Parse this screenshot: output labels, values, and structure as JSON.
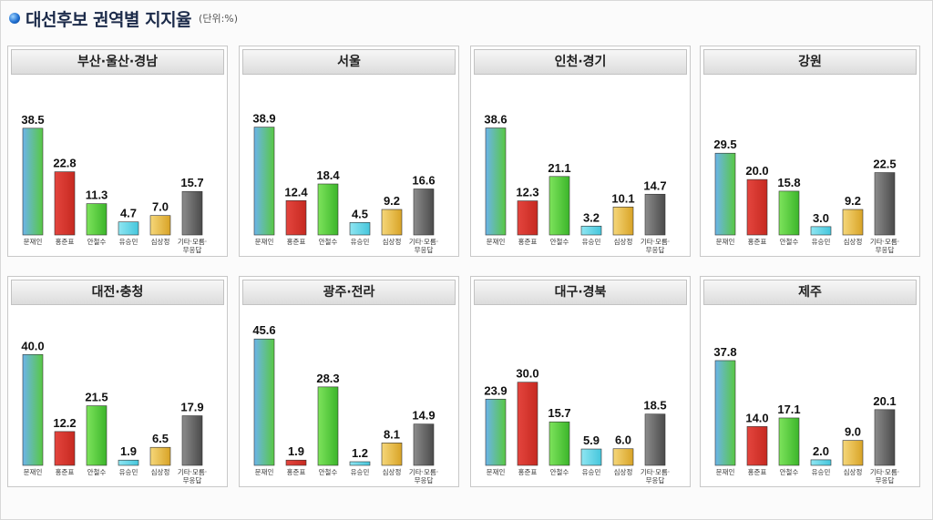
{
  "header": {
    "title": "대선후보 권역별 지지율",
    "unit": "(단위:%)"
  },
  "colors": {
    "문재인": [
      "#6cb4ea",
      "#58c844"
    ],
    "홍준표": [
      "#e4453e",
      "#c62920"
    ],
    "안철수": [
      "#7ee45c",
      "#3bb52a"
    ],
    "유승민": [
      "#8fe6f2",
      "#45c6dc"
    ],
    "심상정": [
      "#f6d77a",
      "#d8a326"
    ],
    "기타": [
      "#8c8c8c",
      "#4a4a4a"
    ]
  },
  "chart_data": [
    {
      "type": "bar",
      "title": "부산·울산·경남",
      "categories": [
        "문재인",
        "홍준표",
        "안철수",
        "유승민",
        "심상정",
        "기타·모름·무응답"
      ],
      "values": [
        38.5,
        22.8,
        11.3,
        4.7,
        7.0,
        15.7
      ],
      "value_labels": [
        "38.5",
        "22.8",
        "11.3",
        "4.7",
        "7.0",
        "15.7"
      ]
    },
    {
      "type": "bar",
      "title": "서울",
      "categories": [
        "문재인",
        "홍준표",
        "안철수",
        "유승민",
        "심상정",
        "기타·모름·무응답"
      ],
      "values": [
        38.9,
        12.4,
        18.4,
        4.5,
        9.2,
        16.6
      ],
      "value_labels": [
        "38.9",
        "12.4",
        "18.4",
        "4.5",
        "9.2",
        "16.6"
      ]
    },
    {
      "type": "bar",
      "title": "인천·경기",
      "categories": [
        "문재인",
        "홍준표",
        "안철수",
        "유승민",
        "심상정",
        "기타·모름·무응답"
      ],
      "values": [
        38.6,
        12.3,
        21.1,
        3.2,
        10.1,
        14.7
      ],
      "value_labels": [
        "38.6",
        "12.3",
        "21.1",
        "3.2",
        "10.1",
        "14.7"
      ]
    },
    {
      "type": "bar",
      "title": "강원",
      "categories": [
        "문재인",
        "홍준표",
        "안철수",
        "유승민",
        "심상정",
        "기타·모름·무응답"
      ],
      "values": [
        29.5,
        20.0,
        15.8,
        3.0,
        9.2,
        22.5
      ],
      "value_labels": [
        "29.5",
        "20.0",
        "15.8",
        "3.0",
        "9.2",
        "22.5"
      ]
    },
    {
      "type": "bar",
      "title": "대전·충청",
      "categories": [
        "문재인",
        "홍준표",
        "안철수",
        "유승민",
        "심상정",
        "기타·모름·무응답"
      ],
      "values": [
        40.0,
        12.2,
        21.5,
        1.9,
        6.5,
        17.9
      ],
      "value_labels": [
        "40.0",
        "12.2",
        "21.5",
        "1.9",
        "6.5",
        "17.9"
      ]
    },
    {
      "type": "bar",
      "title": "광주·전라",
      "categories": [
        "문재인",
        "홍준표",
        "안철수",
        "유승민",
        "심상정",
        "기타·모름·무응답"
      ],
      "values": [
        45.6,
        1.9,
        28.3,
        1.2,
        8.1,
        14.9
      ],
      "value_labels": [
        "45.6",
        "1.9",
        "28.3",
        "1.2",
        "8.1",
        "14.9"
      ]
    },
    {
      "type": "bar",
      "title": "대구·경북",
      "categories": [
        "문재인",
        "홍준표",
        "안철수",
        "유승민",
        "심상정",
        "기타·모름·무응답"
      ],
      "values": [
        23.9,
        30.0,
        15.7,
        5.9,
        6.0,
        18.5
      ],
      "value_labels": [
        "23.9",
        "30.0",
        "15.7",
        "5.9",
        "6.0",
        "18.5"
      ]
    },
    {
      "type": "bar",
      "title": "제주",
      "categories": [
        "문재인",
        "홍준표",
        "안철수",
        "유승민",
        "심상정",
        "기타·모름·무응답"
      ],
      "values": [
        37.8,
        14.0,
        17.1,
        2.0,
        9.0,
        20.1
      ],
      "value_labels": [
        "37.8",
        "14.0",
        "17.1",
        "2.0",
        "9.0",
        "20.1"
      ]
    }
  ]
}
